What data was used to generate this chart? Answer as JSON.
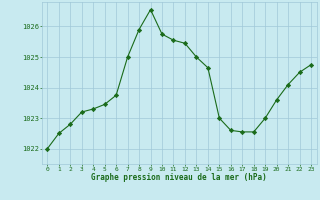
{
  "x": [
    0,
    1,
    2,
    3,
    4,
    5,
    6,
    7,
    8,
    9,
    10,
    11,
    12,
    13,
    14,
    15,
    16,
    17,
    18,
    19,
    20,
    21,
    22,
    23
  ],
  "y": [
    1022.0,
    1022.5,
    1022.8,
    1023.2,
    1023.3,
    1023.45,
    1023.75,
    1025.0,
    1025.9,
    1026.55,
    1025.75,
    1025.55,
    1025.45,
    1025.0,
    1024.65,
    1023.0,
    1022.6,
    1022.55,
    1022.55,
    1023.0,
    1023.6,
    1024.1,
    1024.5,
    1024.75
  ],
  "line_color": "#1a6b1a",
  "marker": "D",
  "marker_size": 2.2,
  "bg_color": "#c8eaf0",
  "grid_color": "#a0c8d8",
  "title": "Graphe pression niveau de la mer (hPa)",
  "title_color": "#1a6b1a",
  "tick_color": "#1a6b1a",
  "ylim": [
    1021.5,
    1026.8
  ],
  "xlim": [
    -0.5,
    23.5
  ],
  "yticks": [
    1022,
    1023,
    1024,
    1025,
    1026
  ],
  "xticks": [
    0,
    1,
    2,
    3,
    4,
    5,
    6,
    7,
    8,
    9,
    10,
    11,
    12,
    13,
    14,
    15,
    16,
    17,
    18,
    19,
    20,
    21,
    22,
    23
  ],
  "figsize": [
    3.2,
    2.0
  ],
  "dpi": 100
}
